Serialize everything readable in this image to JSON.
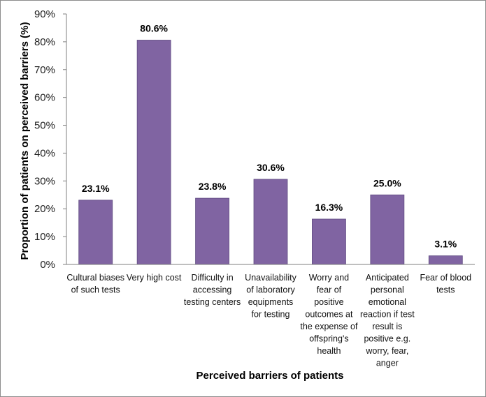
{
  "chart_data": {
    "type": "bar",
    "xlabel": "Perceived barriers of patients",
    "ylabel": "Proportion of patients on perceived barriers (%)",
    "ylim": [
      0,
      90
    ],
    "yticks": [
      "0%",
      "10%",
      "20%",
      "30%",
      "40%",
      "50%",
      "60%",
      "70%",
      "80%",
      "90%"
    ],
    "grid": false,
    "legend": "none",
    "bar_color": "#8064a2",
    "categories": [
      [
        "Cultural biases",
        "of such tests"
      ],
      [
        "Very high cost"
      ],
      [
        "Difficulty in",
        "accessing",
        "testing centers"
      ],
      [
        "Unavailability",
        "of laboratory",
        "equipments",
        "for testing"
      ],
      [
        "Worry and",
        "fear of",
        "positive",
        "outcomes at",
        "the expense of",
        "offspring's",
        "health"
      ],
      [
        "Anticipated",
        "personal",
        "emotional",
        "reaction if test",
        "result is",
        "positive e.g.",
        "worry, fear,",
        "anger"
      ],
      [
        "Fear of blood",
        "tests"
      ]
    ],
    "values": [
      23.1,
      80.6,
      23.8,
      30.6,
      16.3,
      25.0,
      3.1
    ],
    "data_labels": [
      "23.1%",
      "80.6%",
      "23.8%",
      "30.6%",
      "16.3%",
      "25.0%",
      "3.1%"
    ]
  }
}
